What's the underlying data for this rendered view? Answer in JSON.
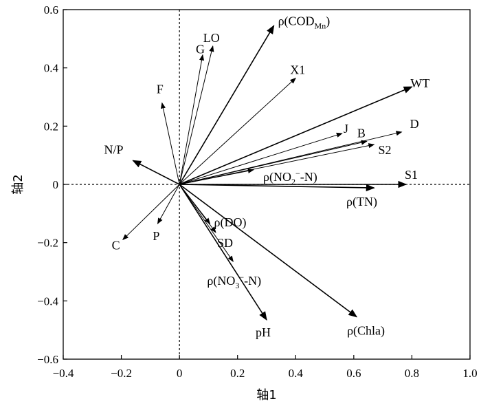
{
  "chart_data": {
    "type": "biplot",
    "xlabel": "轴1",
    "ylabel": "轴2",
    "xlim": [
      -0.4,
      1.0
    ],
    "ylim": [
      -0.6,
      0.6
    ],
    "xticks": [
      "−0.4",
      "−0.2",
      "0",
      "0.2",
      "0.4",
      "0.6",
      "0.8",
      "1.0"
    ],
    "yticks": [
      "0.6",
      "0.4",
      "0.2",
      "0",
      "−0.2",
      "−0.4",
      "−0.6"
    ],
    "reference_lines": {
      "x": 0,
      "y": 0,
      "style": "dotted"
    },
    "vectors": [
      {
        "name": "ρ(COD_Mn)",
        "label": "ρ(COD",
        "sub": "Mn",
        "label_tail": ")",
        "x": 0.325,
        "y": 0.545,
        "group": "bold"
      },
      {
        "name": "WT",
        "label": "WT",
        "x": 0.8,
        "y": 0.335,
        "group": "bold"
      },
      {
        "name": "S1",
        "label": "S1",
        "x": 0.78,
        "y": 0.0,
        "group": "bold"
      },
      {
        "name": "ρ(TN)",
        "label": "ρ(TN)",
        "x": 0.67,
        "y": -0.012,
        "group": "bold"
      },
      {
        "name": "ρ(Chla)",
        "label": "ρ(Chla)",
        "x": 0.61,
        "y": -0.455,
        "group": "bold"
      },
      {
        "name": "pH",
        "label": "pH",
        "x": 0.3,
        "y": -0.465,
        "group": "bold"
      },
      {
        "name": "N/P",
        "label": "N/P",
        "x": -0.16,
        "y": 0.082,
        "group": "bold"
      },
      {
        "name": "C",
        "label": "C",
        "x": -0.195,
        "y": -0.19,
        "group": "thin"
      },
      {
        "name": "P",
        "label": "P",
        "x": -0.075,
        "y": -0.135,
        "group": "thin"
      },
      {
        "name": "F",
        "label": "F",
        "x": -0.06,
        "y": 0.28,
        "group": "thin"
      },
      {
        "name": "G",
        "label": "G",
        "x": 0.08,
        "y": 0.445,
        "group": "thin"
      },
      {
        "name": "LO",
        "label": "LO",
        "x": 0.115,
        "y": 0.475,
        "group": "thin"
      },
      {
        "name": "X1",
        "label": "X1",
        "x": 0.4,
        "y": 0.365,
        "group": "thin"
      },
      {
        "name": "J",
        "label": "J",
        "x": 0.56,
        "y": 0.175,
        "group": "thin"
      },
      {
        "name": "B",
        "label": "B",
        "x": 0.645,
        "y": 0.148,
        "group": "thin"
      },
      {
        "name": "D",
        "label": "D",
        "x": 0.765,
        "y": 0.18,
        "group": "thin"
      },
      {
        "name": "S2",
        "label": "S2",
        "x": 0.67,
        "y": 0.137,
        "group": "thin"
      },
      {
        "name": "ρ(NO2⁻-N)",
        "label": "ρ(NO",
        "sub": "2",
        "sup": "−",
        "label_tail": "-N)",
        "x": 0.255,
        "y": 0.05,
        "group": "thin"
      },
      {
        "name": "ρ(DO)",
        "label": "ρ(DO)",
        "x": 0.105,
        "y": -0.135,
        "group": "thin"
      },
      {
        "name": "SD",
        "label": "SD",
        "x": 0.125,
        "y": -0.165,
        "group": "thin"
      },
      {
        "name": "ρ(NO3⁻-N)",
        "label": "ρ(NO",
        "sub": "3",
        "sup": "−",
        "label_tail": "-N)",
        "x": 0.185,
        "y": -0.265,
        "group": "thin"
      }
    ]
  }
}
